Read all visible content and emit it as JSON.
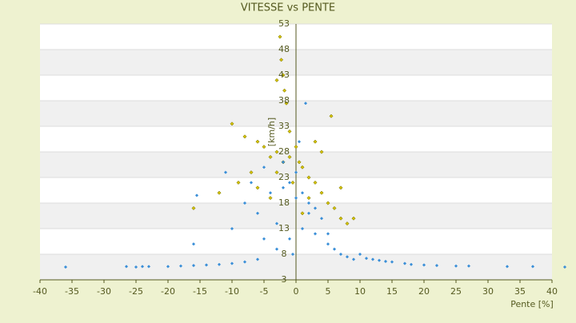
{
  "chart_data": {
    "type": "scatter",
    "title": "VITESSE vs PENTE",
    "x_label": "Pente [%]",
    "y_label": "[km/h]",
    "xlim": [
      -40,
      40
    ],
    "xticks": [
      -40,
      -35,
      -30,
      -25,
      -20,
      -15,
      -10,
      -5,
      0,
      5,
      10,
      15,
      20,
      25,
      30,
      35,
      40
    ],
    "ylim": [
      3,
      53
    ],
    "yticks": [
      3,
      8,
      13,
      18,
      23,
      28,
      33,
      38,
      43,
      48,
      53
    ],
    "grid": true,
    "series": [
      {
        "color": "#d4c000",
        "x": [
          -2.5,
          -2.3,
          -2,
          -3,
          -1.8,
          -1.5,
          -10,
          -8,
          -6,
          -5,
          -4,
          -3,
          -2,
          -1,
          0,
          1,
          2,
          3,
          4,
          5,
          6,
          7,
          8,
          -16,
          -12,
          -9,
          -7,
          4,
          5.5,
          9,
          7,
          3,
          -4,
          -6,
          -1,
          1,
          2,
          -3,
          0.5,
          -0.5
        ],
        "values": [
          50.5,
          46,
          43,
          42,
          40,
          37.5,
          33.5,
          31,
          30,
          29,
          27,
          28,
          26,
          27,
          29,
          25,
          23,
          22,
          20,
          18,
          17,
          15,
          14,
          17,
          20,
          22,
          24,
          28,
          35,
          15,
          21,
          30,
          19,
          21,
          32,
          16,
          19,
          24,
          26,
          22
        ]
      },
      {
        "color": "#3a8fd8",
        "x": [
          -36,
          -26.5,
          -25,
          -24,
          -23,
          -20,
          -18,
          -16,
          -14,
          -12,
          -10,
          -8,
          -6,
          -15.5,
          -16,
          -11,
          -10,
          -8,
          -7,
          -6,
          -5,
          -4,
          -3,
          -2,
          -1,
          0,
          0.5,
          1,
          2,
          3,
          4,
          5,
          6,
          7,
          8,
          9,
          10,
          11,
          12,
          13,
          14,
          15,
          17,
          18,
          20,
          22,
          25,
          27,
          33,
          37,
          42,
          -3,
          -1,
          1,
          2,
          -2,
          0,
          3,
          -5,
          5,
          1.5,
          -0.5
        ],
        "values": [
          5.5,
          5.6,
          5.5,
          5.6,
          5.6,
          5.6,
          5.7,
          5.8,
          5.9,
          6,
          6.2,
          6.5,
          7,
          19.5,
          10,
          24,
          13,
          18,
          22,
          16,
          25,
          20,
          14,
          26,
          22,
          24,
          30,
          20,
          18,
          12,
          15,
          10,
          9,
          8,
          7.5,
          7,
          8,
          7.2,
          7,
          6.8,
          6.6,
          6.5,
          6.2,
          6,
          5.9,
          5.8,
          5.7,
          5.7,
          5.6,
          5.6,
          5.5,
          9,
          11,
          13,
          16,
          21,
          19,
          17,
          11,
          12,
          37.5,
          8
        ]
      }
    ]
  }
}
